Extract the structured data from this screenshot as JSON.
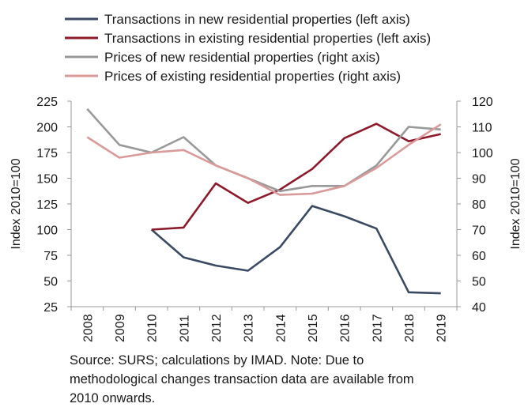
{
  "chart_data": {
    "type": "line",
    "x": [
      "2008",
      "2009",
      "2010",
      "2011",
      "2012",
      "2013",
      "2014",
      "2015",
      "2016",
      "2017",
      "2018",
      "2019"
    ],
    "left_axis": {
      "label": "Index 2010=100",
      "ylim": [
        25,
        225
      ],
      "ticks": [
        25,
        50,
        75,
        100,
        125,
        150,
        175,
        200,
        225
      ]
    },
    "right_axis": {
      "label": "Index 2010=100",
      "ylim": [
        40,
        120
      ],
      "ticks": [
        40,
        50,
        60,
        70,
        80,
        90,
        100,
        110,
        120
      ]
    },
    "series": [
      {
        "name": "Transactions in new residential properties (left axis)",
        "axis": "left",
        "color": "#3b4a63",
        "values": [
          null,
          null,
          100,
          73,
          65,
          60,
          83,
          123,
          113,
          101,
          39,
          38
        ]
      },
      {
        "name": "Transactions in existing residential properties (left axis)",
        "axis": "left",
        "color": "#8b1a2b",
        "values": [
          null,
          null,
          100,
          102,
          145,
          126,
          139,
          159,
          189,
          203,
          186,
          193
        ]
      },
      {
        "name": "Prices of new residential properties (right axis)",
        "axis": "right",
        "color": "#999999",
        "values": [
          117,
          103,
          100,
          106,
          95,
          90,
          85,
          87,
          87,
          95,
          110,
          109
        ]
      },
      {
        "name": "Prices of existing residential properties (right axis)",
        "axis": "right",
        "color": "#d99a9a",
        "values": [
          106,
          98,
          100,
          101,
          95,
          90,
          83.5,
          84,
          87,
          94,
          103,
          111
        ]
      }
    ],
    "grid": false,
    "legend": "top"
  },
  "source_note": [
    "Source: SURS; calculations by IMAD. Note: Due to",
    "methodological changes transaction data are available from",
    "2010 onwards."
  ]
}
